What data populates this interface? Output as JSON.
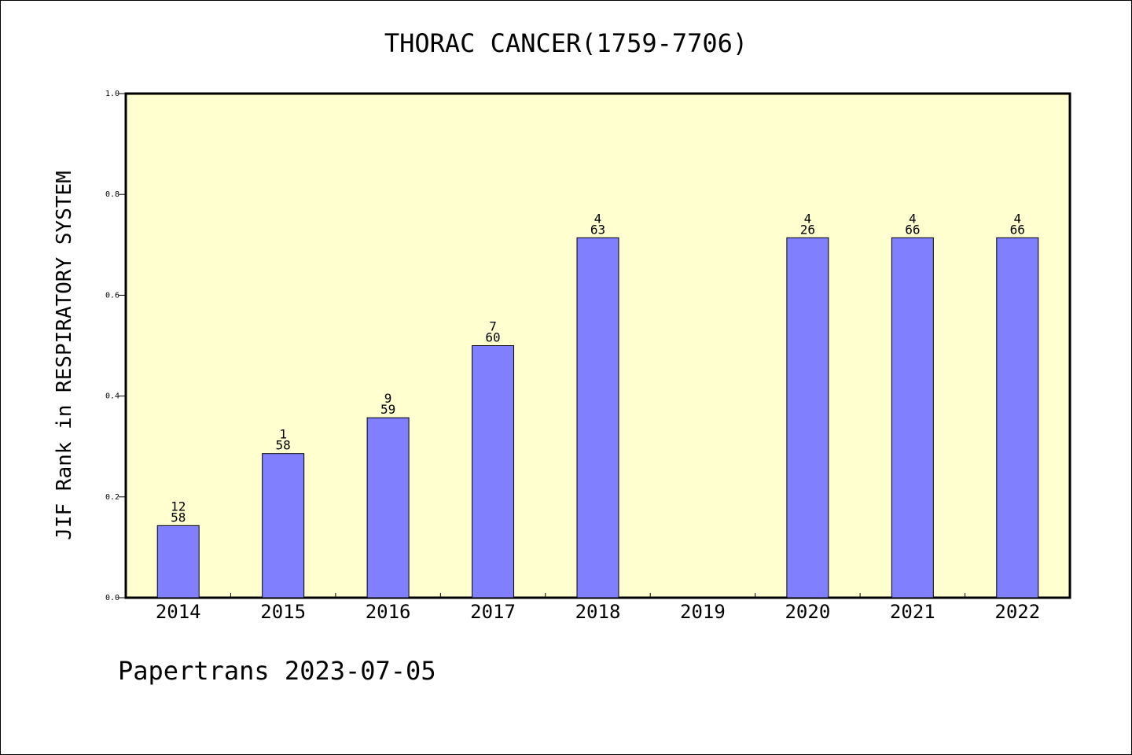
{
  "chart_data": {
    "type": "bar",
    "title": "THORAC CANCER(1759-7706)",
    "ylabel": "JIF Rank in RESPIRATORY SYSTEM",
    "xlabel": "",
    "ylim": [
      0.0,
      1.0
    ],
    "yticks": [
      "0.0",
      "0.2",
      "0.4",
      "0.6",
      "0.8",
      "1.0"
    ],
    "categories": [
      "2014",
      "2015",
      "2016",
      "2017",
      "2018",
      "2019",
      "2020",
      "2021",
      "2022"
    ],
    "values": [
      0.143,
      0.286,
      0.357,
      0.5,
      0.714,
      null,
      0.714,
      0.714,
      0.714
    ],
    "labels": [
      [
        "12",
        "58"
      ],
      [
        "1",
        "58"
      ],
      [
        "9",
        "59"
      ],
      [
        "7",
        "60"
      ],
      [
        "4",
        "63"
      ],
      null,
      [
        "4",
        "26"
      ],
      [
        "4",
        "66"
      ],
      [
        "4",
        "66"
      ]
    ],
    "bar_color": "#8080ff",
    "plot_background": "#ffffd0",
    "grid": false
  },
  "footer": "Papertrans 2023-07-05"
}
